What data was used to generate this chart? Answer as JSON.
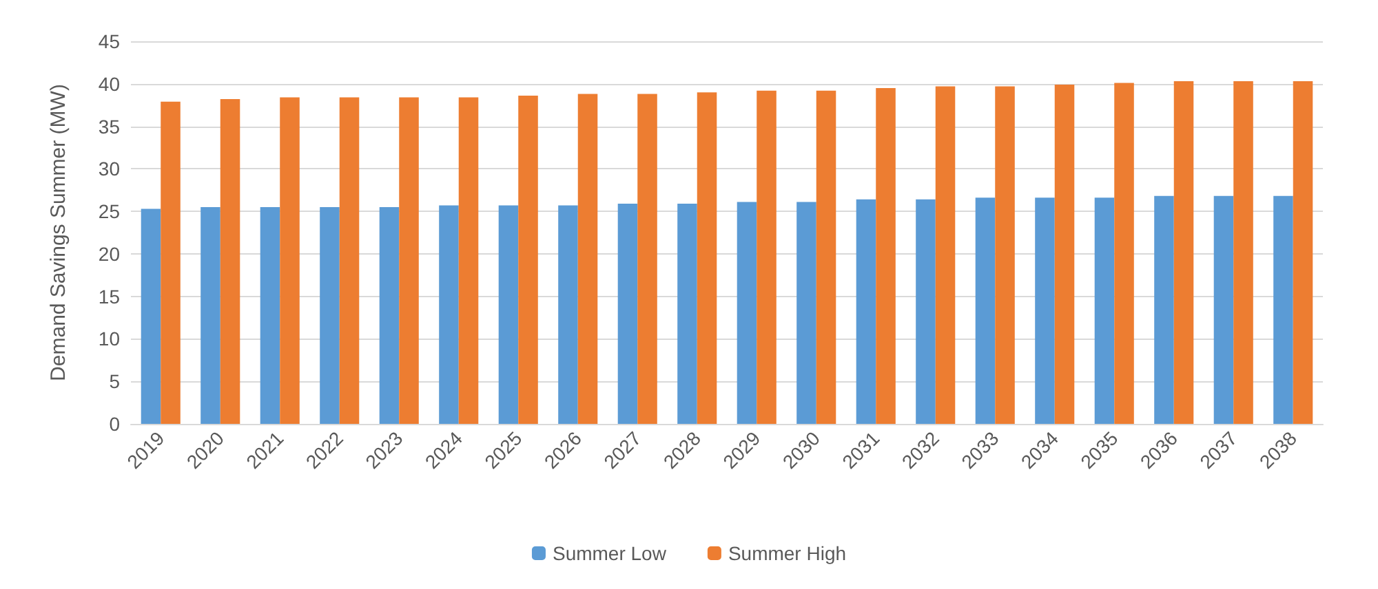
{
  "chart_data": {
    "type": "bar",
    "ylabel": "Demand Savings Summer (MW)",
    "categories": [
      "2019",
      "2020",
      "2021",
      "2022",
      "2023",
      "2024",
      "2025",
      "2026",
      "2027",
      "2028",
      "2029",
      "2030",
      "2031",
      "2032",
      "2033",
      "2034",
      "2035",
      "2036",
      "2037",
      "2038"
    ],
    "series": [
      {
        "name": "Summer Low",
        "color": "#5b9bd5",
        "values": [
          25.3,
          25.5,
          25.5,
          25.5,
          25.5,
          25.7,
          25.7,
          25.7,
          25.9,
          25.9,
          26.1,
          26.1,
          26.4,
          26.4,
          26.6,
          26.6,
          26.6,
          26.8,
          26.8,
          26.8
        ]
      },
      {
        "name": "Summer High",
        "color": "#ed7d31",
        "values": [
          37.9,
          38.2,
          38.4,
          38.4,
          38.4,
          38.4,
          38.6,
          38.8,
          38.8,
          39.0,
          39.2,
          39.2,
          39.5,
          39.7,
          39.7,
          39.9,
          40.1,
          40.3,
          40.3,
          40.3
        ]
      }
    ],
    "ylim": [
      0,
      45
    ],
    "yticks": [
      0,
      5,
      10,
      15,
      20,
      25,
      30,
      35,
      40,
      45
    ],
    "grid": "y",
    "legend": "bottom"
  }
}
